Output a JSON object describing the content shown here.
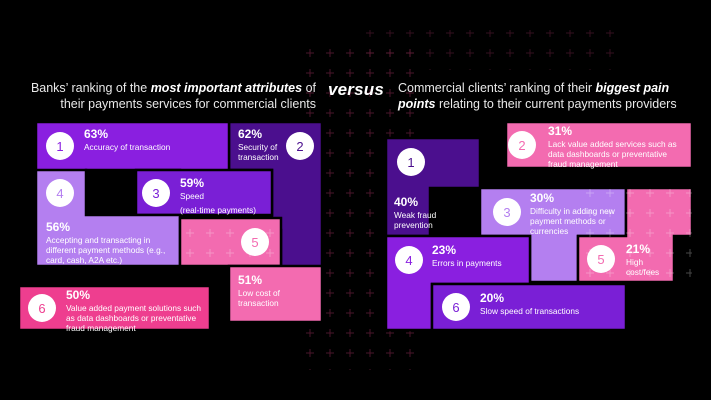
{
  "header": {
    "left": {
      "pre": "Banks’ ranking of the ",
      "emph": "most important attributes",
      "post": " of their payments services for commercial clients"
    },
    "versus": "versus",
    "right": {
      "pre": "Commercial clients’ ranking of their ",
      "emph": "biggest pain points",
      "post": " relating to their current payments providers"
    }
  },
  "colors": {
    "background": "#000000",
    "purple_bright": "#9b1fe8",
    "purple_mid": "#7a1fd6",
    "purple_dark": "#4b0f8e",
    "lavender": "#b47ff0",
    "pink": "#f36bb0",
    "pink_hot": "#ee3e8f"
  },
  "chart_data": [
    {
      "type": "table",
      "title": "Banks’ ranking of the most important attributes of their payments services for commercial clients",
      "items": [
        {
          "rank": 1,
          "value": 63,
          "pct": "63%",
          "label": "Accuracy of transaction"
        },
        {
          "rank": 2,
          "value": 62,
          "pct": "62%",
          "label": "Security of transaction"
        },
        {
          "rank": 3,
          "value": 59,
          "pct": "59%",
          "label": "Speed",
          "sublabel": "(real-time payments)"
        },
        {
          "rank": 4,
          "value": 56,
          "pct": "56%",
          "label": "Accepting and transacting in different payment methods (e.g., card, cash, A2A etc.)"
        },
        {
          "rank": 5,
          "value": 51,
          "pct": "51%",
          "label": "Low cost of transaction"
        },
        {
          "rank": 6,
          "value": 50,
          "pct": "50%",
          "label": "Value added payment solutions such as data dashboards or preventative fraud management"
        }
      ]
    },
    {
      "type": "table",
      "title": "Commercial clients’ ranking of their biggest pain points relating to their current payments providers",
      "items": [
        {
          "rank": 1,
          "value": 40,
          "pct": "40%",
          "label": "Weak fraud prevention"
        },
        {
          "rank": 2,
          "value": 31,
          "pct": "31%",
          "label": "Lack value added services such as data dashboards or preventative fraud management"
        },
        {
          "rank": 3,
          "value": 30,
          "pct": "30%",
          "label": "Difficulty in adding new payment methods or currencies"
        },
        {
          "rank": 4,
          "value": 23,
          "pct": "23%",
          "label": "Errors in payments"
        },
        {
          "rank": 5,
          "value": 21,
          "pct": "21%",
          "label": "High cost/fees"
        },
        {
          "rank": 6,
          "value": 20,
          "pct": "20%",
          "label": "Slow speed of transactions"
        }
      ]
    }
  ]
}
